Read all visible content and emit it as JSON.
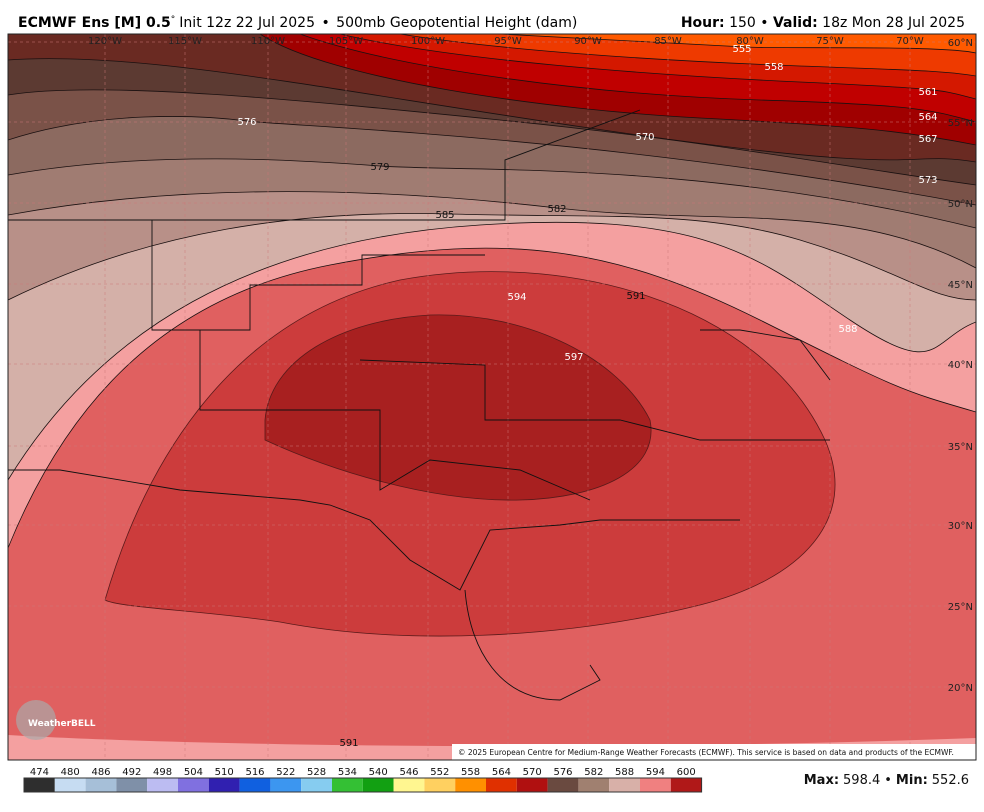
{
  "header": {
    "model": "ECMWF Ens [M] 0.5",
    "degree": "°",
    "init": "Init 12z 22 Jul 2025",
    "bullet": "•",
    "field": "500mb Geopotential Height (dam)",
    "hour_label": "Hour:",
    "hour": "150",
    "valid_label": "Valid:",
    "valid": "18z Mon 28 Jul 2025"
  },
  "map": {
    "lon_labels": [
      "120°W",
      "115°W",
      "110°W",
      "105°W",
      "100°W",
      "95°W",
      "90°W",
      "85°W",
      "80°W",
      "75°W",
      "70°W"
    ],
    "lat_labels": [
      "60°N",
      "55°N",
      "50°N",
      "45°N",
      "40°N",
      "35°N",
      "30°N",
      "25°N",
      "20°N"
    ],
    "contour_labels": [
      "555",
      "558",
      "561",
      "564",
      "567",
      "570",
      "573",
      "576",
      "579",
      "582",
      "585",
      "588",
      "591",
      "594",
      "597",
      "591"
    ],
    "logo": "WeatherBELL",
    "copyright": "© 2025 European Centre for Medium-Range Weather Forecasts (ECMWF). This service is based on data and products of the ECMWF."
  },
  "colorbar": {
    "labels": [
      474,
      480,
      486,
      492,
      498,
      504,
      510,
      516,
      522,
      528,
      534,
      540,
      546,
      552,
      558,
      564,
      570,
      576,
      582,
      588,
      594,
      600
    ],
    "colors": [
      "#2e2e2e",
      "#c6dcf2",
      "#a6bfd8",
      "#7f90a8",
      "#bcbcf2",
      "#8070e0",
      "#3020b0",
      "#1060e0",
      "#3c96f0",
      "#86ccf0",
      "#34c034",
      "#12a012",
      "#fff690",
      "#ffd060",
      "#ff9000",
      "#e03000",
      "#b01010",
      "#6a4a40",
      "#a08070",
      "#d8b0a8",
      "#f08080",
      "#b01818"
    ]
  },
  "stats": {
    "max_label": "Max:",
    "max": 598.4,
    "bullet": "•",
    "min_label": "Min:",
    "min": 552.6
  }
}
